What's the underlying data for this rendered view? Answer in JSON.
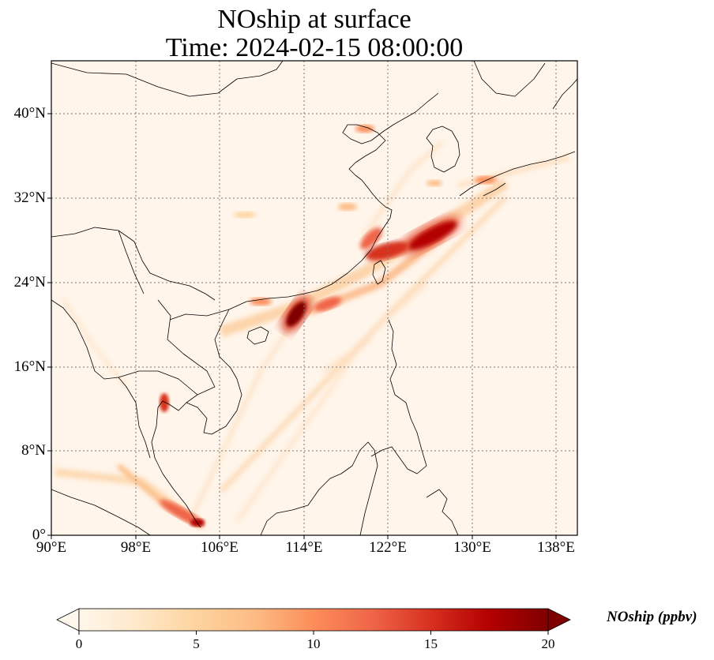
{
  "title": {
    "line1": "NOship at surface",
    "line2": "Time: 2024-02-15 08:00:00"
  },
  "map": {
    "extent": {
      "lon": [
        90,
        140
      ],
      "lat": [
        0,
        45
      ]
    },
    "gridlines": "dotted",
    "lat_ticks": [
      "40°N",
      "32°N",
      "24°N",
      "16°N",
      "8°N",
      "0°"
    ],
    "lon_ticks": [
      "90°E",
      "98°E",
      "106°E",
      "114°E",
      "122°E",
      "130°E",
      "138°E"
    ],
    "colormap": "OrRd"
  },
  "colorbar": {
    "label": "NOship (ppbv)",
    "ticks": [
      "0",
      "5",
      "10",
      "15",
      "20"
    ],
    "range": [
      0,
      20
    ],
    "extend": "both",
    "colors": [
      "#fff7ec",
      "#fee8c8",
      "#fdd49e",
      "#fdbb84",
      "#fc8d59",
      "#ef6548",
      "#d7301f",
      "#b30000",
      "#7f0000"
    ]
  }
}
